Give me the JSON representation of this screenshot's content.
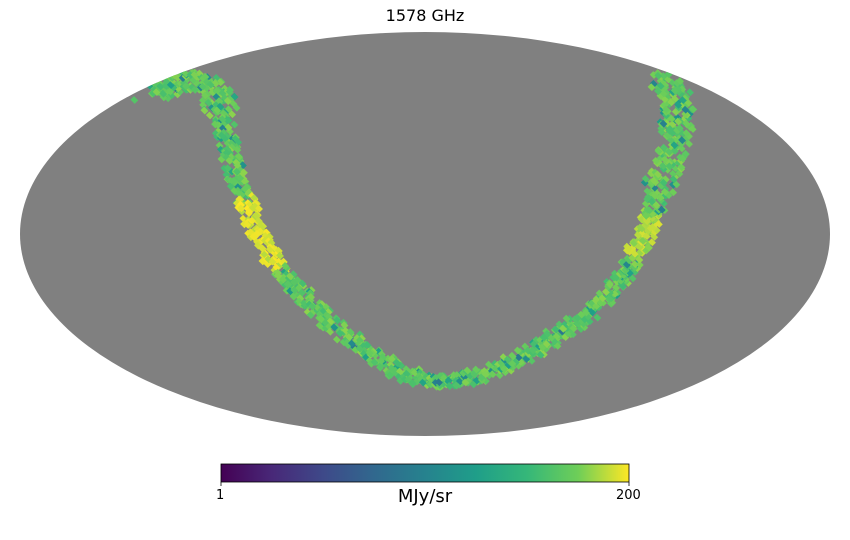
{
  "chart_data": {
    "type": "heatmap",
    "projection": "mollweide",
    "title": "1578 GHz",
    "colormap": "viridis",
    "masked_color": "#808080",
    "colorbar": {
      "label": "MJy/sr",
      "min": 1,
      "max": 200,
      "min_label": "1",
      "max_label": "200",
      "orientation": "horizontal"
    },
    "grid": false,
    "observed_region": "narrow U-shaped scan strip across the sky; all other pixels masked",
    "bright_regions": [
      {
        "region": "left arm",
        "approx_value": 190
      },
      {
        "region": "right arm",
        "approx_value": 150
      }
    ]
  }
}
